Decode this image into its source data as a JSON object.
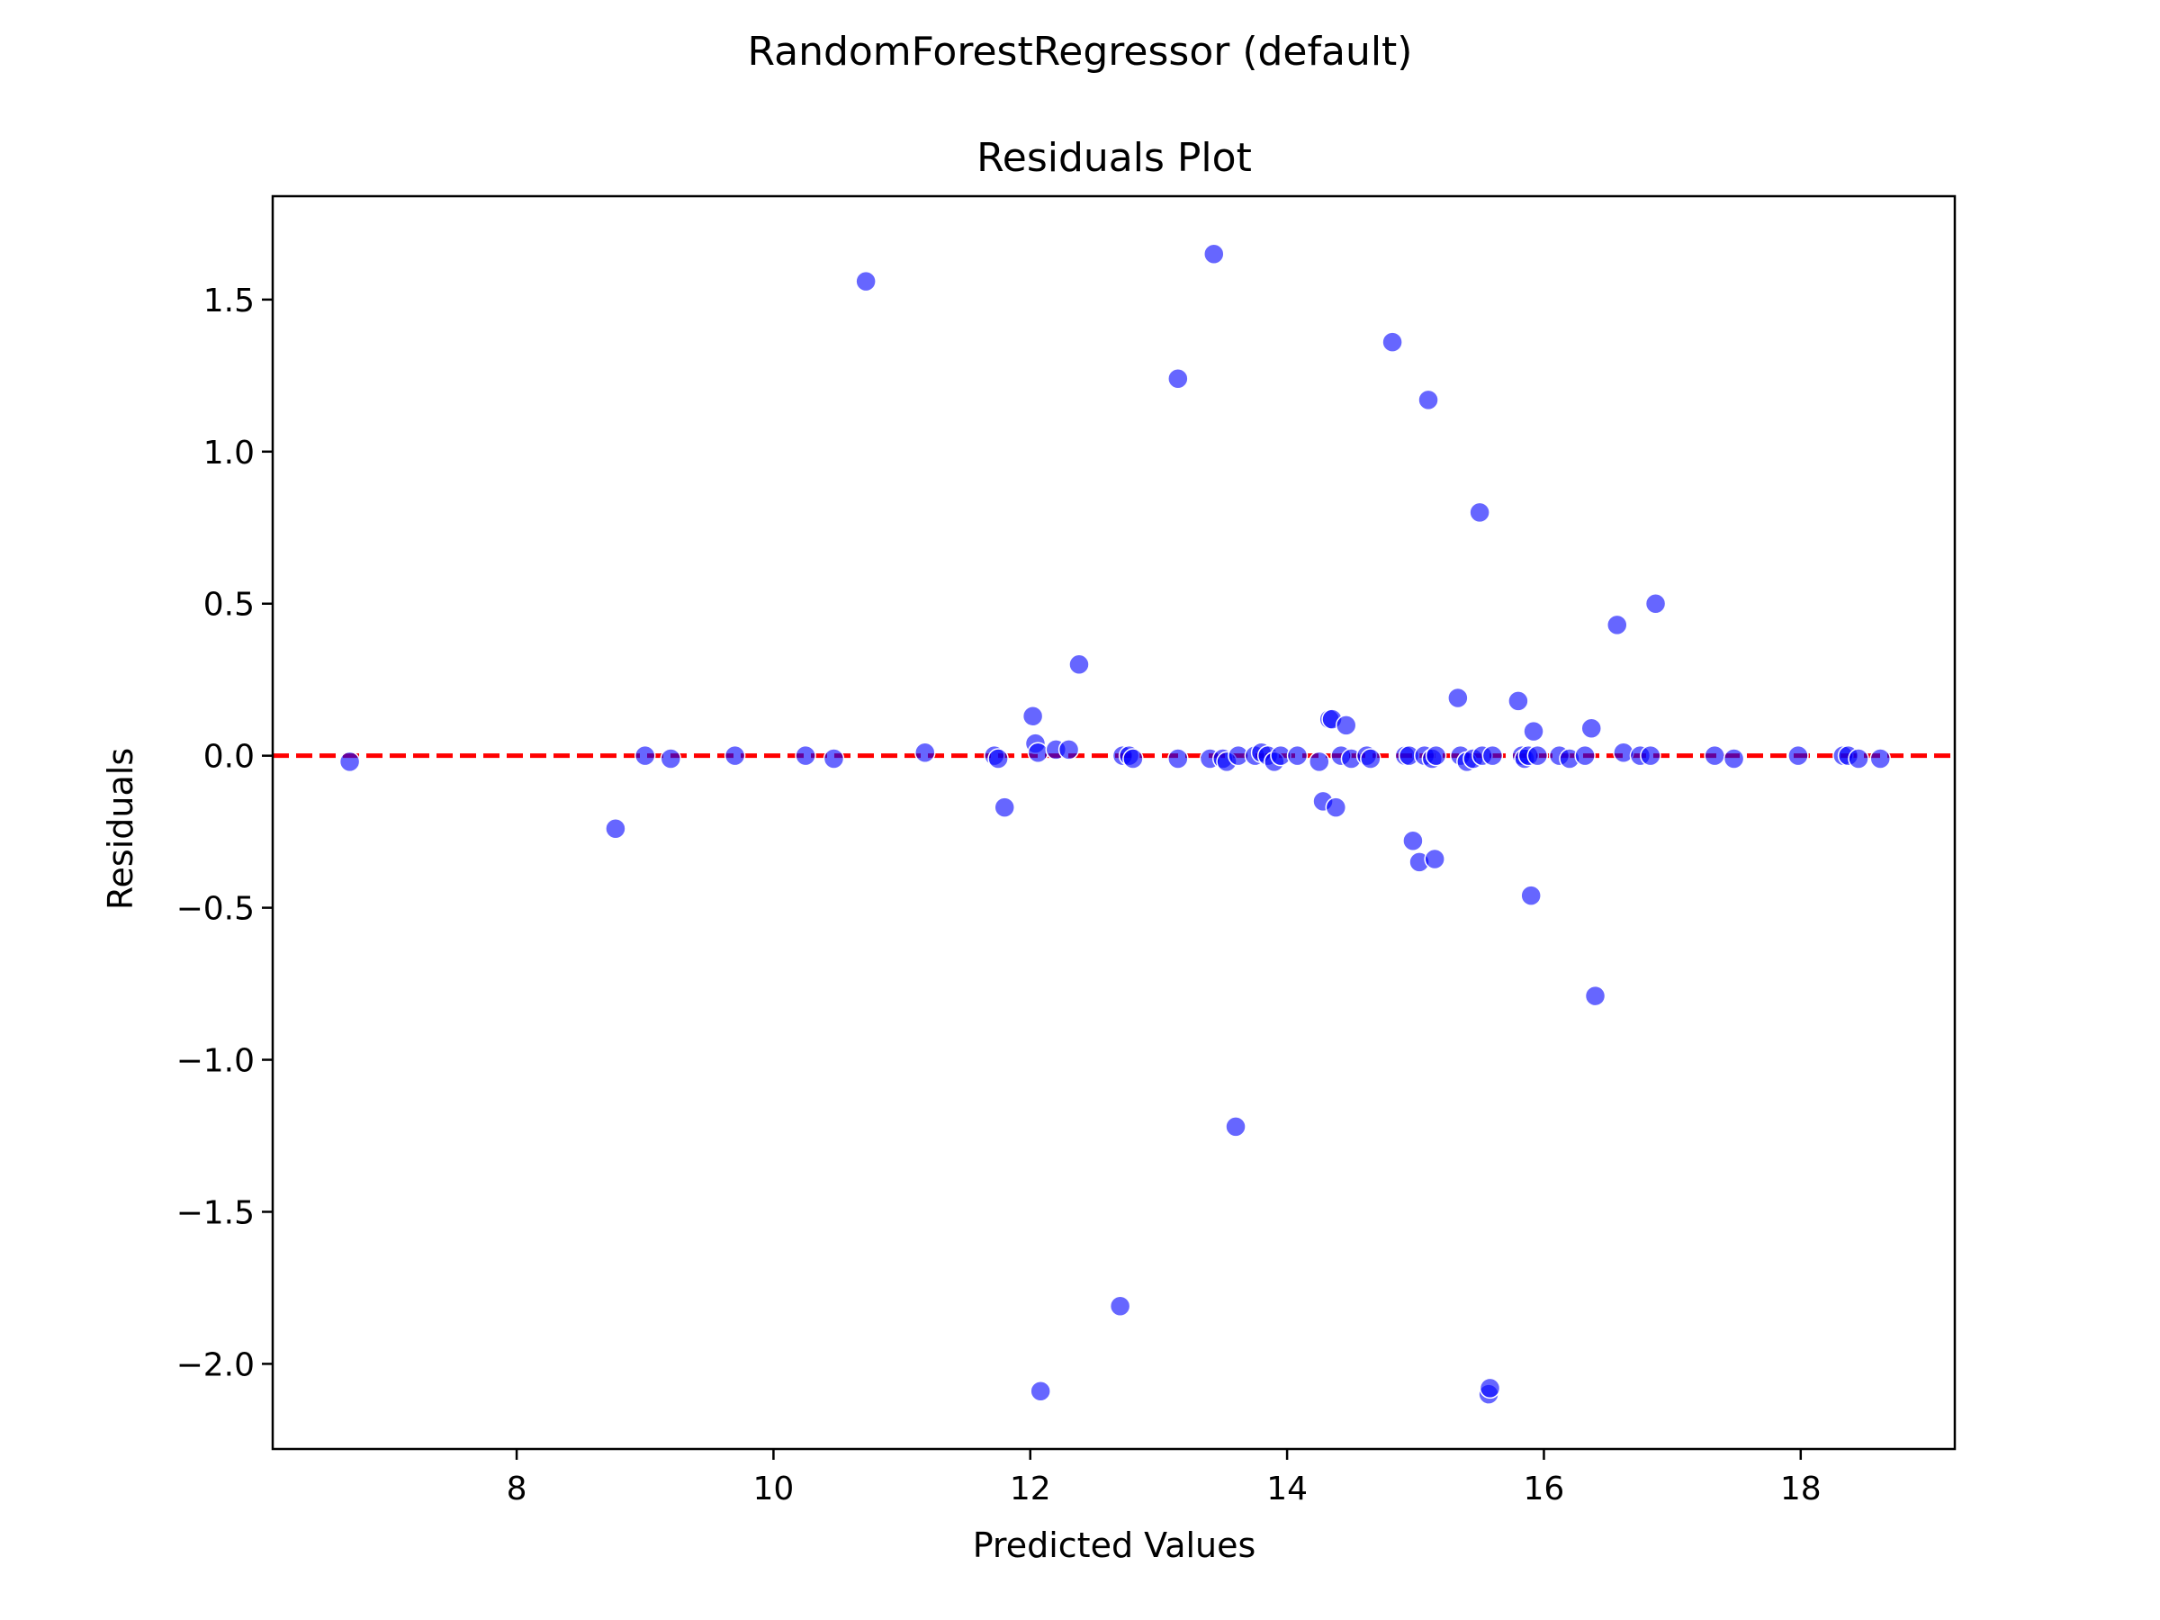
{
  "chart_data": {
    "type": "scatter",
    "suptitle": "RandomForestRegressor (default)",
    "title": "Residuals Plot",
    "xlabel": "Predicted Values",
    "ylabel": "Residuals",
    "xlim": [
      6.1,
      19.2
    ],
    "ylim": [
      -2.28,
      1.84
    ],
    "xticks": [
      8,
      10,
      12,
      14,
      16,
      18
    ],
    "yticks": [
      1.5,
      1.0,
      0.5,
      0.0,
      -0.5,
      -1.0,
      -1.5,
      -2.0
    ],
    "ytick_labels": [
      "1.5",
      "1.0",
      "0.5",
      "0.0",
      "−0.5",
      "−1.0",
      "−1.5",
      "−2.0"
    ],
    "grid": false,
    "point_color": "#0000ff",
    "reference_line": {
      "y": 0,
      "color": "#ff0000",
      "style": "dashed"
    },
    "points": [
      [
        6.7,
        -0.02
      ],
      [
        8.77,
        -0.24
      ],
      [
        9.0,
        0.0
      ],
      [
        9.2,
        -0.01
      ],
      [
        9.7,
        0.0
      ],
      [
        10.25,
        0.0
      ],
      [
        10.47,
        -0.01
      ],
      [
        10.72,
        1.56
      ],
      [
        11.18,
        0.01
      ],
      [
        11.72,
        0.0
      ],
      [
        11.75,
        -0.01
      ],
      [
        11.8,
        -0.17
      ],
      [
        12.02,
        0.13
      ],
      [
        12.04,
        0.04
      ],
      [
        12.06,
        0.01
      ],
      [
        12.08,
        -2.09
      ],
      [
        12.2,
        0.02
      ],
      [
        12.3,
        0.02
      ],
      [
        12.38,
        0.3
      ],
      [
        12.7,
        -1.81
      ],
      [
        12.72,
        0.0
      ],
      [
        12.77,
        0.0
      ],
      [
        12.8,
        -0.01
      ],
      [
        13.15,
        1.24
      ],
      [
        13.15,
        -0.01
      ],
      [
        13.4,
        -0.01
      ],
      [
        13.43,
        1.65
      ],
      [
        13.5,
        -0.01
      ],
      [
        13.53,
        -0.02
      ],
      [
        13.6,
        -1.22
      ],
      [
        13.62,
        0.0
      ],
      [
        13.75,
        0.0
      ],
      [
        13.8,
        0.01
      ],
      [
        13.85,
        0.0
      ],
      [
        13.9,
        -0.02
      ],
      [
        13.95,
        0.0
      ],
      [
        14.08,
        0.0
      ],
      [
        14.25,
        -0.02
      ],
      [
        14.28,
        -0.15
      ],
      [
        14.33,
        0.12
      ],
      [
        14.35,
        0.12
      ],
      [
        14.38,
        -0.17
      ],
      [
        14.42,
        0.0
      ],
      [
        14.46,
        0.1
      ],
      [
        14.5,
        -0.01
      ],
      [
        14.62,
        0.0
      ],
      [
        14.65,
        -0.01
      ],
      [
        14.82,
        1.36
      ],
      [
        14.92,
        0.0
      ],
      [
        14.95,
        0.0
      ],
      [
        14.98,
        -0.28
      ],
      [
        15.03,
        -0.35
      ],
      [
        15.07,
        0.0
      ],
      [
        15.1,
        1.17
      ],
      [
        15.13,
        -0.01
      ],
      [
        15.15,
        -0.34
      ],
      [
        15.16,
        0.0
      ],
      [
        15.33,
        0.19
      ],
      [
        15.35,
        0.0
      ],
      [
        15.4,
        -0.02
      ],
      [
        15.45,
        -0.01
      ],
      [
        15.5,
        0.8
      ],
      [
        15.52,
        0.0
      ],
      [
        15.57,
        -2.1
      ],
      [
        15.58,
        -2.08
      ],
      [
        15.6,
        0.0
      ],
      [
        15.8,
        0.18
      ],
      [
        15.83,
        0.0
      ],
      [
        15.85,
        -0.01
      ],
      [
        15.88,
        0.0
      ],
      [
        15.9,
        -0.46
      ],
      [
        15.92,
        0.08
      ],
      [
        15.95,
        0.0
      ],
      [
        16.12,
        0.0
      ],
      [
        16.2,
        -0.01
      ],
      [
        16.32,
        0.0
      ],
      [
        16.37,
        0.09
      ],
      [
        16.4,
        -0.79
      ],
      [
        16.57,
        0.43
      ],
      [
        16.62,
        0.01
      ],
      [
        16.75,
        0.0
      ],
      [
        16.83,
        0.0
      ],
      [
        16.87,
        0.5
      ],
      [
        17.33,
        0.0
      ],
      [
        17.48,
        -0.01
      ],
      [
        17.98,
        0.0
      ],
      [
        18.33,
        0.0
      ],
      [
        18.37,
        0.0
      ],
      [
        18.45,
        -0.01
      ],
      [
        18.62,
        -0.01
      ]
    ]
  }
}
